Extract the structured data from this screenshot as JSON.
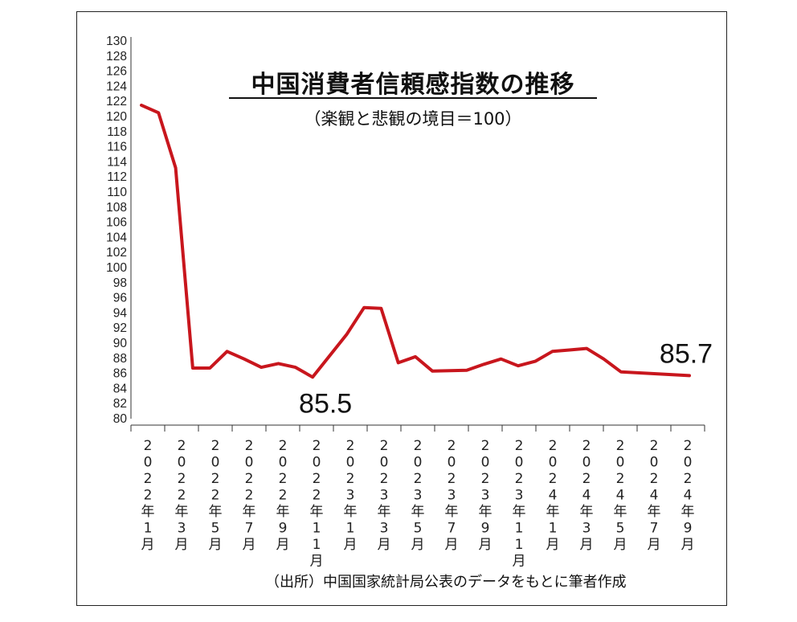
{
  "chart_data": {
    "type": "line",
    "title": "中国消費者信頼感指数の推移",
    "subtitle": "（楽観と悲観の境目＝100）",
    "source": "（出所）中国国家統計局公表のデータをもとに筆者作成",
    "xlabel": "",
    "ylabel": "",
    "ylim": [
      80,
      130
    ],
    "yticks": [
      "80",
      "82",
      "84",
      "86",
      "88",
      "90",
      "92",
      "94",
      "96",
      "98",
      "100",
      "102",
      "104",
      "106",
      "108",
      "110",
      "112",
      "114",
      "116",
      "118",
      "120",
      "122",
      "124",
      "126",
      "128",
      "130"
    ],
    "x_tick_labels": [
      "2022年1月",
      "2022年3月",
      "2022年5月",
      "2022年7月",
      "2022年9月",
      "2022年11月",
      "2023年1月",
      "2023年3月",
      "2023年5月",
      "2023年7月",
      "2023年9月",
      "2023年11月",
      "2024年1月",
      "2024年3月",
      "2024年5月",
      "2024年7月",
      "2024年9月"
    ],
    "categories": [
      "2022-01",
      "2022-02",
      "2022-03",
      "2022-04",
      "2022-05",
      "2022-06",
      "2022-07",
      "2022-08",
      "2022-09",
      "2022-10",
      "2022-11",
      "2022-12",
      "2023-01",
      "2023-02",
      "2023-03",
      "2023-04",
      "2023-05",
      "2023-06",
      "2023-07",
      "2023-08",
      "2023-09",
      "2023-10",
      "2023-11",
      "2023-12",
      "2024-01",
      "2024-02",
      "2024-03",
      "2024-04",
      "2024-05",
      "2024-06",
      "2024-07",
      "2024-08",
      "2024-09"
    ],
    "series": [
      {
        "values": [
          121.5,
          120.5,
          113.2,
          86.7,
          86.7,
          88.9,
          87.9,
          86.8,
          87.3,
          86.8,
          85.5,
          null,
          91.2,
          94.7,
          94.6,
          87.4,
          88.2,
          86.3,
          null,
          86.4,
          87.2,
          87.9,
          87.0,
          87.6,
          88.9,
          89.1,
          89.3,
          87.9,
          86.2,
          null,
          null,
          null,
          85.7
        ]
      }
    ],
    "line_color": "#c8161d",
    "annotations": [
      {
        "text": "85.5",
        "at": "2022-11",
        "position": "below"
      },
      {
        "text": "85.7",
        "at": "2024-09",
        "position": "above"
      }
    ],
    "grid": false,
    "legend": "none"
  }
}
